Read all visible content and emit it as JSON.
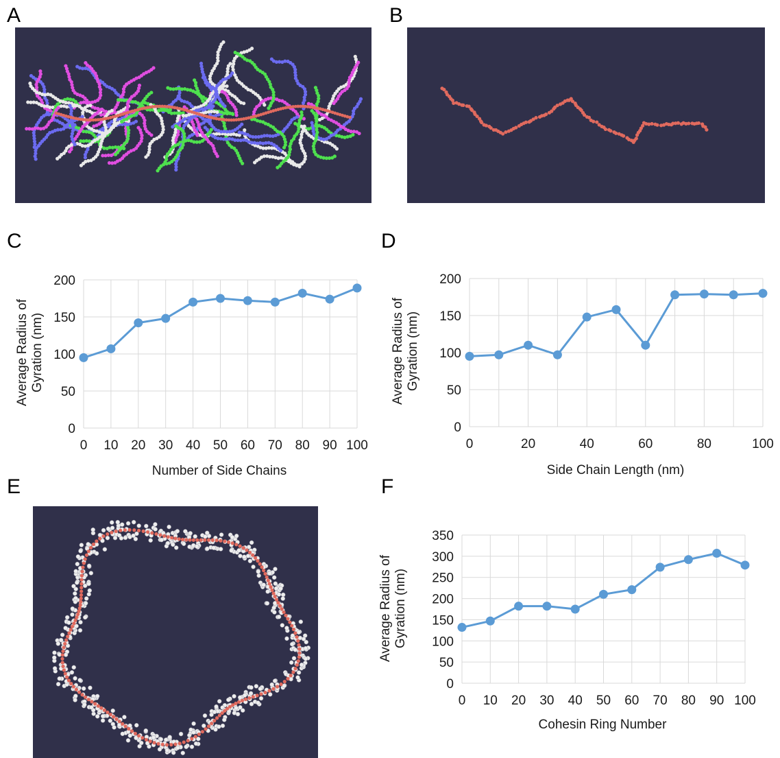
{
  "panels": {
    "a": "A",
    "b": "B",
    "c": "C",
    "d": "D",
    "e": "E",
    "f": "F"
  },
  "colors": {
    "background_sim": "#30304a",
    "series_line": "#5b9bd5",
    "backbone": "#e06a5e",
    "side_chain_colors": [
      "#6b6bf0",
      "#4ee04e",
      "#e04ee0",
      "#e8e8e8"
    ]
  },
  "chart_data": [
    {
      "id": "C",
      "type": "line",
      "title": "",
      "xlabel": "Number of Side Chains",
      "ylabel_line1": "Average Radius of",
      "ylabel_line2": "Gyration (nm)",
      "x": [
        0,
        10,
        20,
        30,
        40,
        50,
        60,
        70,
        80,
        90,
        100
      ],
      "xticks": [
        "0",
        "10",
        "20",
        "30",
        "40",
        "50",
        "60",
        "70",
        "80",
        "90",
        "100"
      ],
      "yticks": [
        "0",
        "50",
        "100",
        "150",
        "200"
      ],
      "ylim": [
        0,
        200
      ],
      "grid": true,
      "series": [
        {
          "values": [
            95,
            107,
            142,
            148,
            170,
            175,
            172,
            170,
            182,
            174,
            189
          ]
        }
      ]
    },
    {
      "id": "D",
      "type": "line",
      "title": "",
      "xlabel": "Side Chain Length (nm)",
      "ylabel_line1": "Average Radius of",
      "ylabel_line2": "Gyration (nm)",
      "x": [
        0,
        10,
        20,
        30,
        40,
        50,
        60,
        70,
        80,
        90,
        100
      ],
      "xticks": [
        "0",
        "20",
        "40",
        "60",
        "80",
        "100"
      ],
      "xtick_values": [
        0,
        20,
        40,
        60,
        80,
        100
      ],
      "yticks": [
        "0",
        "50",
        "100",
        "150",
        "200"
      ],
      "ylim": [
        0,
        200
      ],
      "grid": true,
      "series": [
        {
          "values": [
            95,
            97,
            110,
            97,
            148,
            158,
            110,
            178,
            179,
            178,
            180
          ]
        }
      ]
    },
    {
      "id": "F",
      "type": "line",
      "title": "",
      "xlabel": "Cohesin Ring Number",
      "ylabel_line1": "Average Radius of",
      "ylabel_line2": "Gyration (nm)",
      "x": [
        0,
        10,
        20,
        30,
        40,
        50,
        60,
        70,
        80,
        90,
        100
      ],
      "xticks": [
        "0",
        "10",
        "20",
        "30",
        "40",
        "50",
        "60",
        "70",
        "80",
        "90",
        "100"
      ],
      "yticks": [
        "0",
        "50",
        "100",
        "150",
        "200",
        "250",
        "300",
        "350"
      ],
      "ylim": [
        0,
        350
      ],
      "grid": true,
      "series": [
        {
          "values": [
            132,
            147,
            182,
            182,
            175,
            210,
            221,
            274,
            292,
            307,
            279
          ]
        }
      ]
    }
  ]
}
